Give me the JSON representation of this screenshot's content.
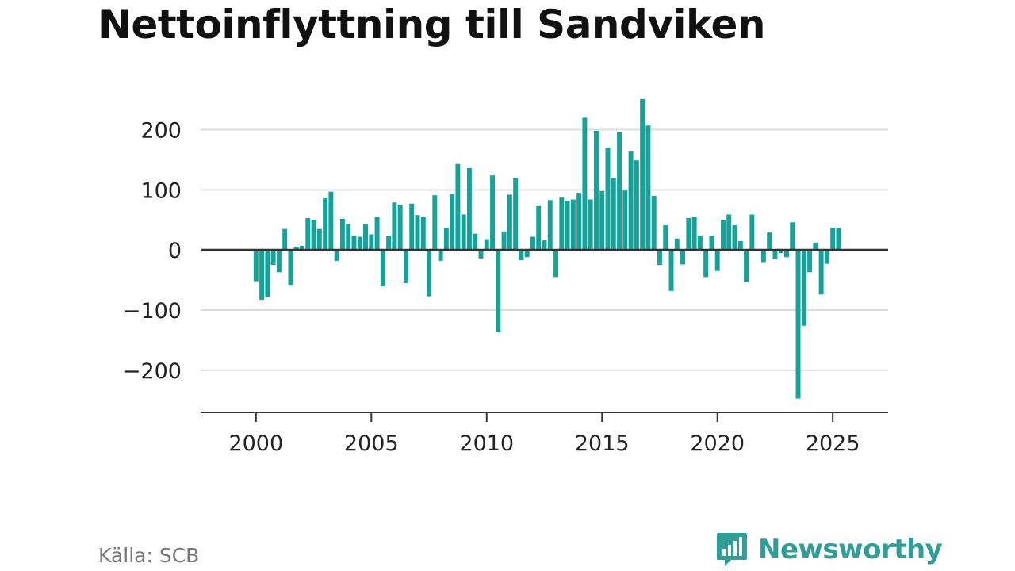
{
  "title": "Nettoinflyttning till Sandviken",
  "source": "Källa: SCB",
  "brand": {
    "name": "Newsworthy",
    "logo_icon": "newsworthy-logo-icon"
  },
  "colors": {
    "bar": "#14a39a",
    "brand": "#2f9e96",
    "grid": "#dddddd",
    "axis": "#333333"
  },
  "chart_data": {
    "type": "bar",
    "title": "Nettoinflyttning till Sandviken",
    "xlabel": "",
    "ylabel": "",
    "ylim": [
      -270,
      260
    ],
    "xlim": [
      1997.6,
      2027.4
    ],
    "y_ticks": [
      200,
      100,
      0,
      -100,
      -200
    ],
    "y_tick_labels": [
      "200",
      "100",
      "0",
      "−100",
      "−200"
    ],
    "x_ticks": [
      2000,
      2005,
      2010,
      2015,
      2020,
      2025
    ],
    "x_tick_labels": [
      "2000",
      "2005",
      "2010",
      "2015",
      "2020",
      "2025"
    ],
    "grid": true,
    "legend": "none",
    "start": "2000 Q1",
    "frequency": "quarterly",
    "values": [
      -52,
      -83,
      -78,
      -25,
      -37,
      35,
      -58,
      5,
      7,
      53,
      50,
      35,
      86,
      97,
      -18,
      52,
      43,
      23,
      22,
      43,
      26,
      55,
      -60,
      23,
      79,
      75,
      -55,
      77,
      58,
      55,
      -77,
      91,
      -18,
      36,
      93,
      143,
      59,
      136,
      27,
      -14,
      18,
      124,
      -137,
      31,
      92,
      120,
      -17,
      -12,
      22,
      73,
      16,
      83,
      -45,
      87,
      81,
      84,
      95,
      220,
      84,
      198,
      98,
      170,
      120,
      196,
      99,
      164,
      149,
      251,
      207,
      90,
      -25,
      41,
      -68,
      19,
      -24,
      53,
      55,
      24,
      -45,
      24,
      -35,
      50,
      59,
      41,
      15,
      -53,
      59,
      0,
      -20,
      29,
      -15,
      -5,
      -12,
      46,
      -247,
      -126,
      -37,
      12,
      -74,
      -23,
      37,
      37
    ]
  }
}
